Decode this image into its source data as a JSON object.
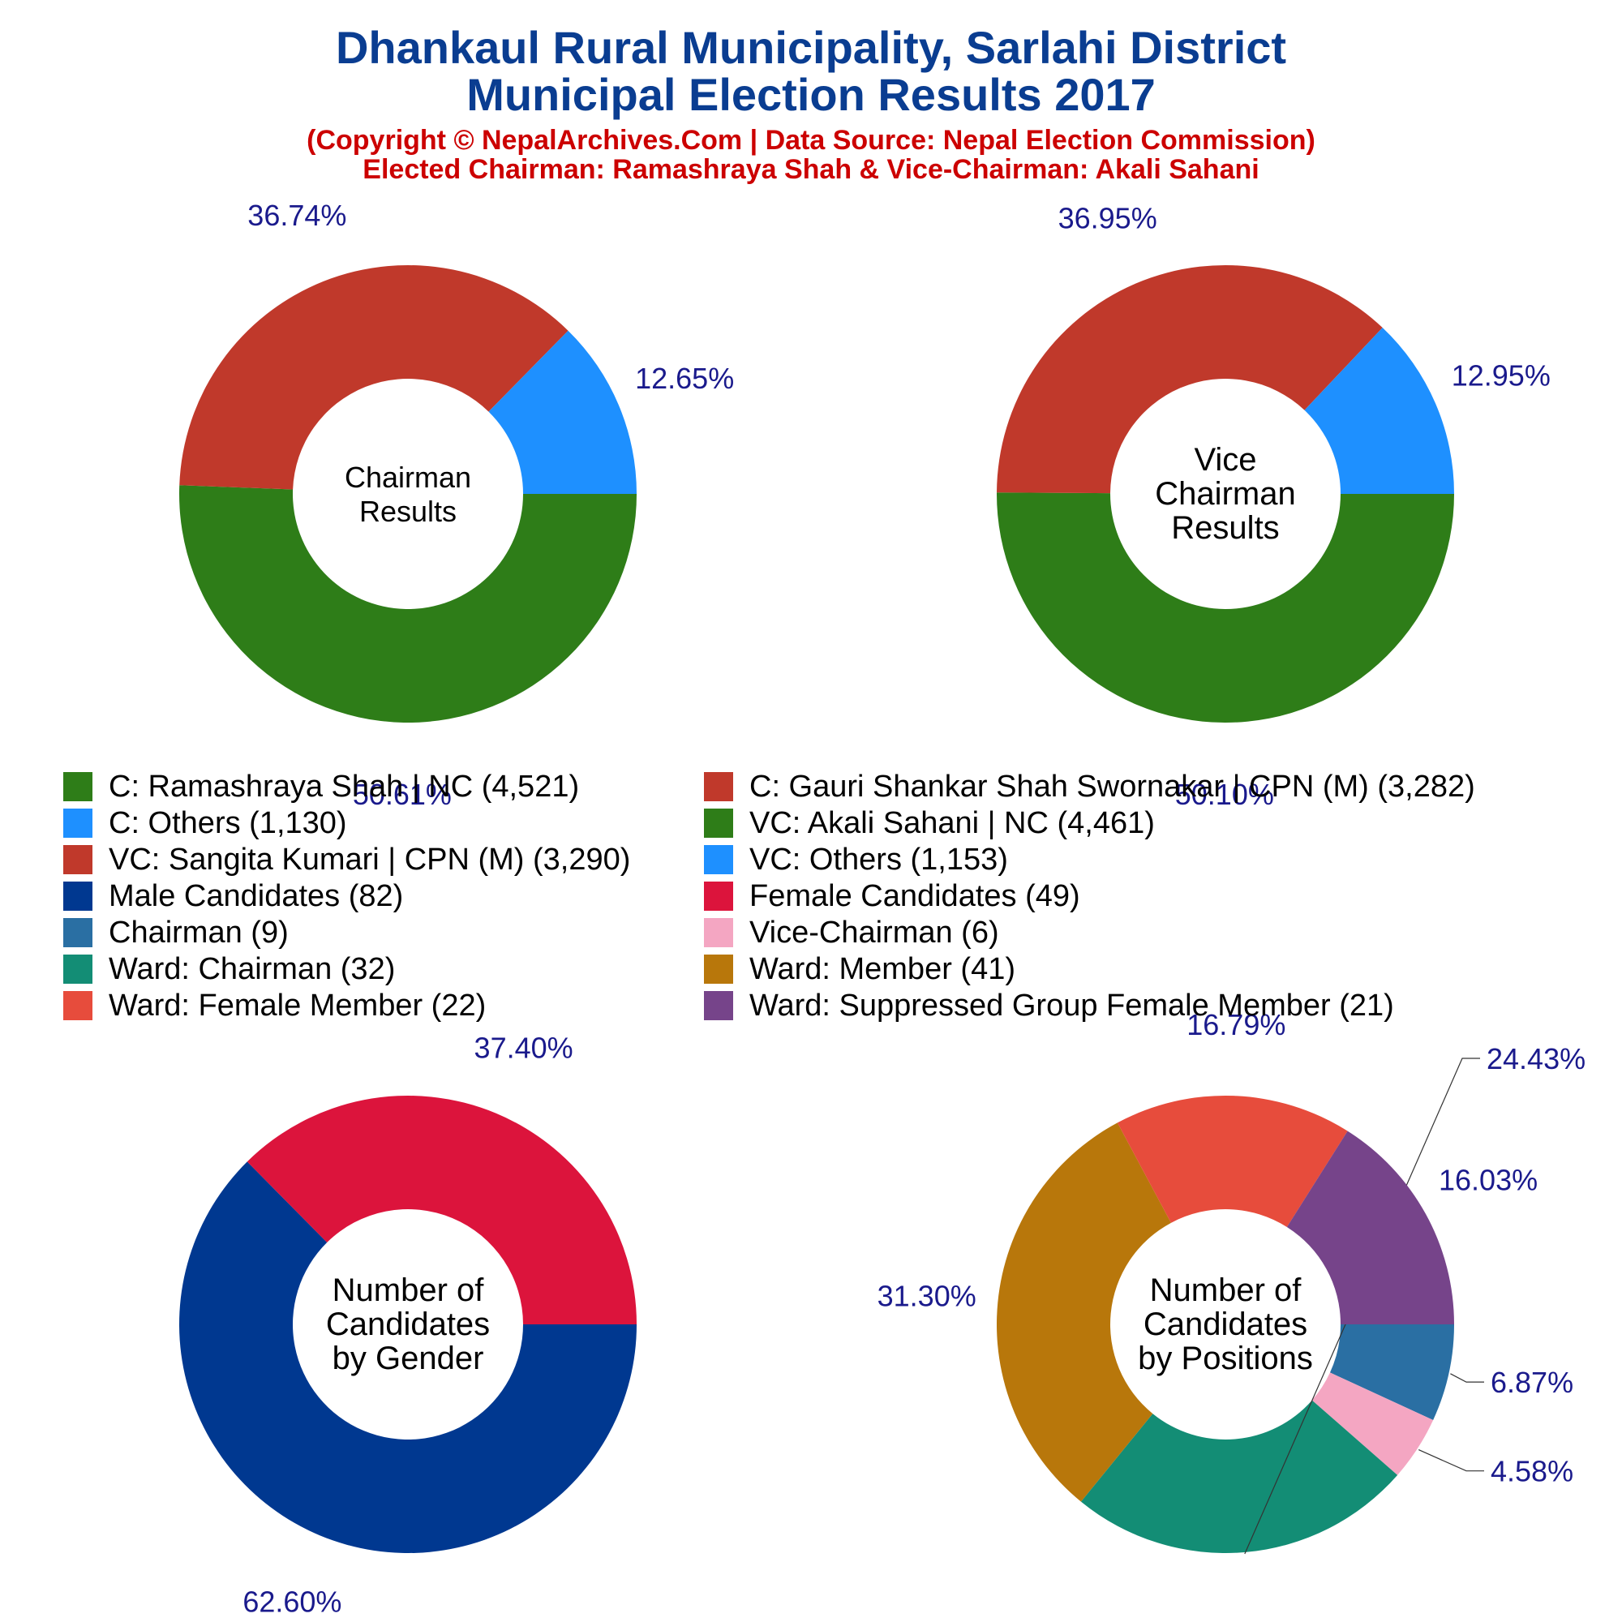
{
  "title": {
    "line1": "Dhankaul Rural Municipality, Sarlahi District",
    "line2": "Municipal Election Results 2017"
  },
  "subtitle": {
    "line1": "(Copyright © NepalArchives.Com | Data Source: Nepal Election Commission)",
    "line2": "Elected Chairman: Ramashraya Shah & Vice-Chairman: Akali Sahani"
  },
  "legend": [
    {
      "label": "C: Ramashraya Shah | NC (4,521)",
      "color": "#2e7d18"
    },
    {
      "label": "C: Gauri Shankar Shah Swornakar | CPN (M) (3,282)",
      "color": "#c0392b"
    },
    {
      "label": "C: Others (1,130)",
      "color": "#1e90ff"
    },
    {
      "label": "VC: Akali Sahani | NC (4,461)",
      "color": "#2e7d18"
    },
    {
      "label": "VC: Sangita Kumari | CPN (M) (3,290)",
      "color": "#c0392b"
    },
    {
      "label": "VC: Others (1,153)",
      "color": "#1e90ff"
    },
    {
      "label": "Male Candidates (82)",
      "color": "#003890"
    },
    {
      "label": "Female Candidates (49)",
      "color": "#dc143c"
    },
    {
      "label": "Chairman (9)",
      "color": "#2a6fa3"
    },
    {
      "label": "Vice-Chairman (6)",
      "color": "#f4a6c2"
    },
    {
      "label": "Ward: Chairman (32)",
      "color": "#138d75"
    },
    {
      "label": "Ward: Member (41)",
      "color": "#b8770b"
    },
    {
      "label": "Ward: Female Member (22)",
      "color": "#e74c3c"
    },
    {
      "label": "Ward: Suppressed Group Female Member (21)",
      "color": "#76448a"
    }
  ],
  "chart_data": [
    {
      "type": "pie",
      "center_label": [
        "Chairman",
        "Results"
      ],
      "slices": [
        {
          "name": "C: Ramashraya Shah | NC",
          "value": 4521,
          "label": "50.61%",
          "color": "#2e7d18"
        },
        {
          "name": "C: Gauri Shankar Shah Swornakar | CPN (M)",
          "value": 3282,
          "label": "36.74%",
          "color": "#c0392b"
        },
        {
          "name": "C: Others",
          "value": 1130,
          "label": "12.65%",
          "color": "#1e90ff"
        }
      ]
    },
    {
      "type": "pie",
      "center_label": [
        "Vice",
        "Chairman",
        "Results"
      ],
      "slices": [
        {
          "name": "VC: Akali Sahani | NC",
          "value": 4461,
          "label": "50.10%",
          "color": "#2e7d18"
        },
        {
          "name": "VC: Sangita Kumari | CPN (M)",
          "value": 3290,
          "label": "36.95%",
          "color": "#c0392b"
        },
        {
          "name": "VC: Others",
          "value": 1153,
          "label": "12.95%",
          "color": "#1e90ff"
        }
      ]
    },
    {
      "type": "pie",
      "center_label": [
        "Number of",
        "Candidates",
        "by Gender"
      ],
      "slices": [
        {
          "name": "Male Candidates",
          "value": 82,
          "label": "62.60%",
          "color": "#003890"
        },
        {
          "name": "Female Candidates",
          "value": 49,
          "label": "37.40%",
          "color": "#dc143c"
        }
      ]
    },
    {
      "type": "pie",
      "center_label": [
        "Number of",
        "Candidates",
        "by Positions"
      ],
      "slices": [
        {
          "name": "Chairman",
          "value": 9,
          "label": "6.87%",
          "color": "#2a6fa3"
        },
        {
          "name": "Vice-Chairman",
          "value": 6,
          "label": "4.58%",
          "color": "#f4a6c2"
        },
        {
          "name": "Ward: Chairman",
          "value": 32,
          "label": "24.43%",
          "color": "#138d75"
        },
        {
          "name": "Ward: Member",
          "value": 41,
          "label": "31.30%",
          "color": "#b8770b"
        },
        {
          "name": "Ward: Female Member",
          "value": 22,
          "label": "16.79%",
          "color": "#e74c3c"
        },
        {
          "name": "Ward: Suppressed Group Female Member",
          "value": 21,
          "label": "16.03%",
          "color": "#76448a"
        }
      ]
    }
  ]
}
